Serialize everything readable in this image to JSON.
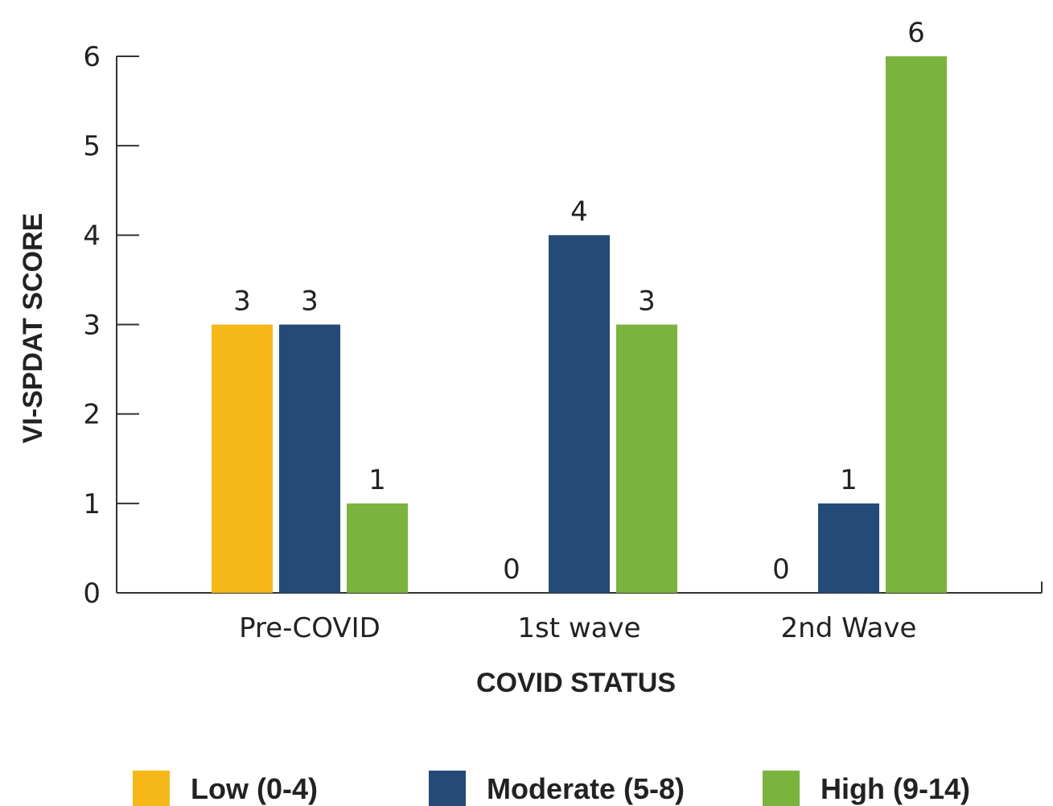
{
  "chart_data": {
    "type": "bar",
    "title": "",
    "xlabel": "COVID STATUS",
    "ylabel": "VI-SPDAT SCORE",
    "categories": [
      "Pre-COVID",
      "1st wave",
      "2nd Wave"
    ],
    "series": [
      {
        "name": "Low (0-4)",
        "color": "#F5B818",
        "values": [
          3,
          0,
          0
        ]
      },
      {
        "name": "Moderate (5-8)",
        "color": "#244A77",
        "values": [
          3,
          4,
          1
        ]
      },
      {
        "name": "High (9-14)",
        "color": "#7AB33E",
        "values": [
          1,
          3,
          6
        ]
      }
    ],
    "yticks": [
      0,
      1,
      2,
      3,
      4,
      5,
      6
    ],
    "ylim": [
      0,
      6
    ],
    "grid": false,
    "legend_position": "bottom"
  }
}
